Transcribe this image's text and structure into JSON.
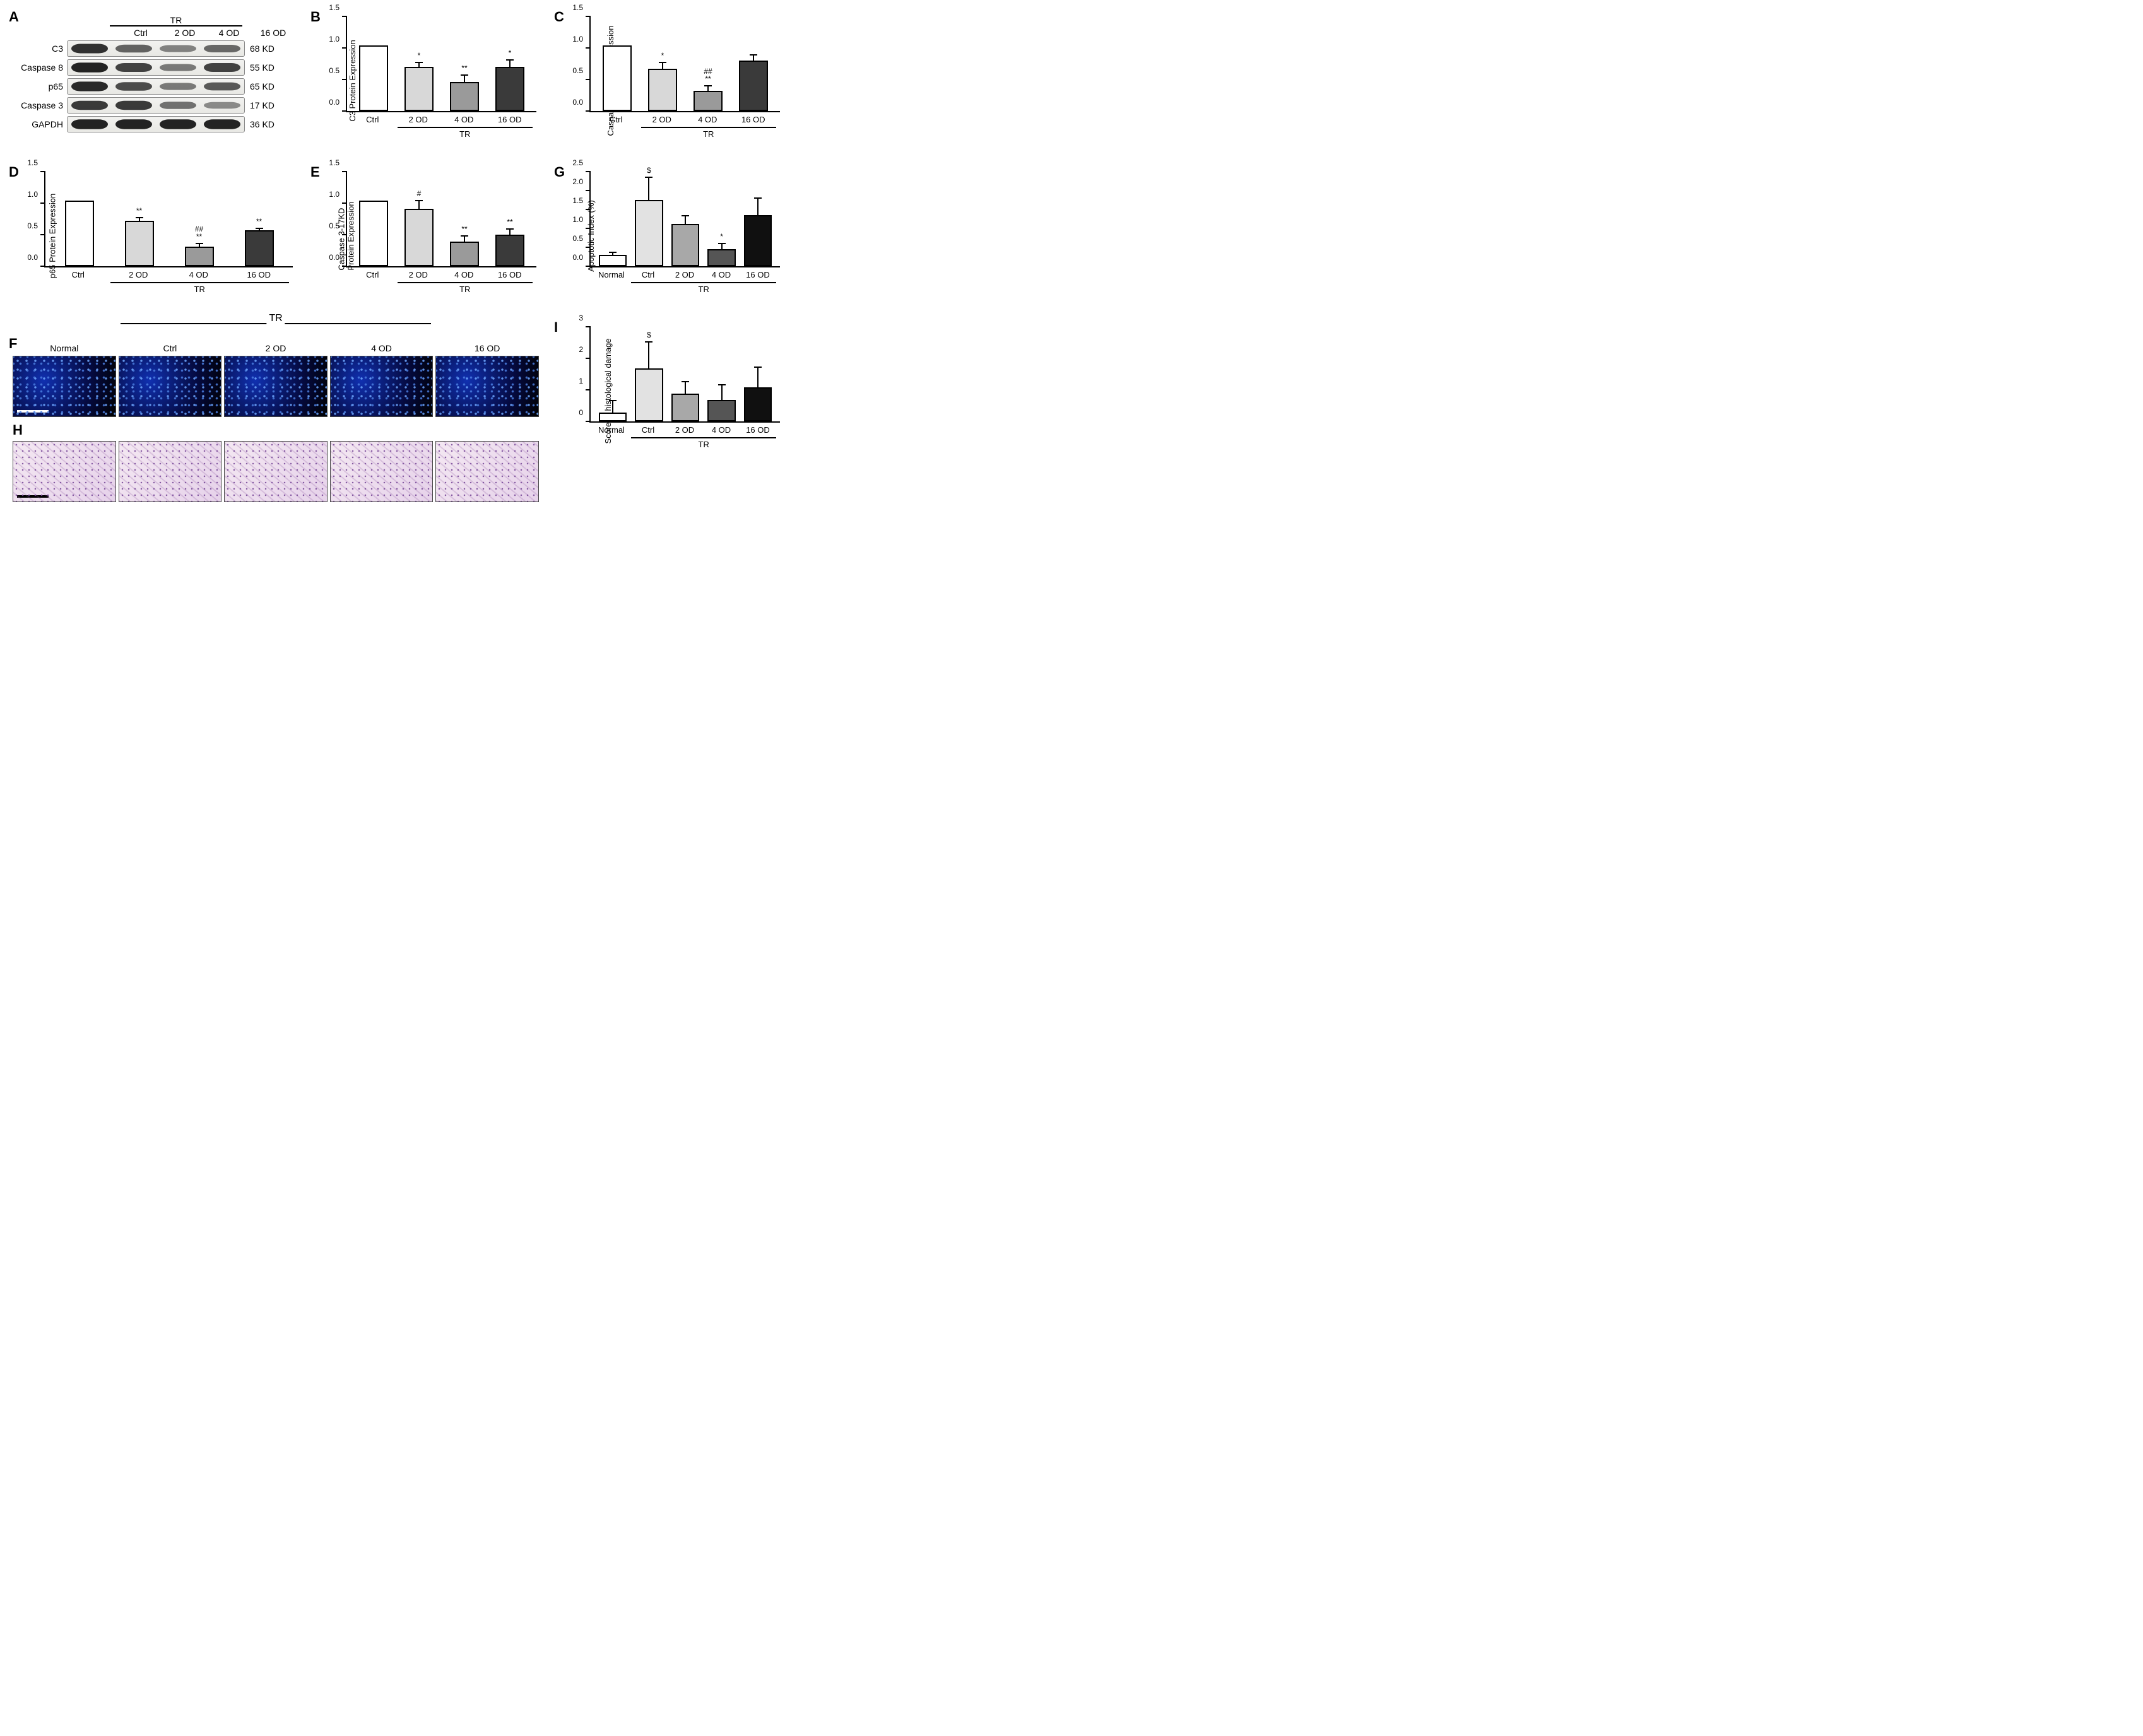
{
  "treatments4": [
    "Ctrl",
    "2 OD",
    "4 OD",
    "16 OD"
  ],
  "treatments5": [
    "Normal",
    "Ctrl",
    "2 OD",
    "4 OD",
    "16 OD"
  ],
  "tr_label": "TR",
  "panelA": {
    "label": "A",
    "rows": [
      {
        "name": "C3",
        "kd": "68 KD",
        "intensity": [
          0.85,
          0.55,
          0.35,
          0.5
        ]
      },
      {
        "name": "Caspase 8",
        "kd": "55 KD",
        "intensity": [
          0.95,
          0.75,
          0.4,
          0.75
        ]
      },
      {
        "name": "p65",
        "kd": "65 KD",
        "intensity": [
          0.9,
          0.7,
          0.4,
          0.6
        ]
      },
      {
        "name": "Caspase 3",
        "kd": "17 KD",
        "intensity": [
          0.8,
          0.8,
          0.45,
          0.3
        ]
      },
      {
        "name": "GAPDH",
        "kd": "36 KD",
        "intensity": [
          0.95,
          0.95,
          0.95,
          0.95
        ]
      }
    ]
  },
  "chartsCommon": {
    "bar_border": "#000000",
    "colors4": [
      "#ffffff",
      "#d8d8d8",
      "#9a9a9a",
      "#3a3a3a"
    ],
    "colors5": [
      "#ffffff",
      "#e2e2e2",
      "#a8a8a8",
      "#555555",
      "#101010"
    ],
    "tick_font": 12,
    "label_font": 13
  },
  "panelB": {
    "label": "B",
    "ylabel": "C3 Protein Expression",
    "ylim": [
      0,
      1.5
    ],
    "ytick_step": 0.5,
    "groups": 4,
    "values": [
      1.0,
      0.66,
      0.42,
      0.66
    ],
    "errors": [
      0.0,
      0.1,
      0.14,
      0.14
    ],
    "sig": [
      "",
      "*",
      "**",
      "*"
    ]
  },
  "panelC": {
    "label": "C",
    "ylabel": "Caspase 8 Protein Expression",
    "ylim": [
      0,
      1.5
    ],
    "ytick_step": 0.5,
    "groups": 4,
    "values": [
      1.0,
      0.63,
      0.28,
      0.76
    ],
    "errors": [
      0.0,
      0.13,
      0.11,
      0.12
    ],
    "sig": [
      "",
      "*",
      "##\n**",
      ""
    ]
  },
  "panelD": {
    "label": "D",
    "ylabel": "p65 Protein Expression",
    "ylim": [
      0,
      1.5
    ],
    "ytick_step": 0.5,
    "groups": 4,
    "values": [
      1.0,
      0.68,
      0.27,
      0.53
    ],
    "errors": [
      0.0,
      0.08,
      0.08,
      0.06
    ],
    "sig": [
      "",
      "**",
      "##\n**",
      "**"
    ]
  },
  "panelE": {
    "label": "E",
    "ylabel": "Caspase 3-17KD\nProtein Expression",
    "ylim": [
      0,
      1.5
    ],
    "ytick_step": 0.5,
    "groups": 4,
    "values": [
      1.0,
      0.87,
      0.35,
      0.46
    ],
    "errors": [
      0.0,
      0.16,
      0.12,
      0.12
    ],
    "sig": [
      "",
      "#",
      "**",
      "**"
    ]
  },
  "panelG": {
    "label": "G",
    "ylabel": "Apoptotic Index (%)",
    "ylim": [
      0,
      2.5
    ],
    "ytick_step": 0.5,
    "groups": 5,
    "values": [
      0.23,
      1.68,
      1.05,
      0.38,
      1.28
    ],
    "errors": [
      0.12,
      0.65,
      0.27,
      0.2,
      0.5
    ],
    "sig": [
      "",
      "$",
      "",
      "*",
      ""
    ]
  },
  "panelI": {
    "label": "I",
    "ylabel": "Score of histological damage",
    "ylim": [
      0,
      3
    ],
    "ytick_step": 1,
    "groups": 5,
    "values": [
      0.2,
      1.6,
      0.8,
      0.6,
      1.0
    ],
    "errors": [
      0.45,
      0.9,
      0.45,
      0.55,
      0.7
    ],
    "sig": [
      "",
      "$",
      "",
      "",
      ""
    ]
  },
  "panelF": {
    "label": "F",
    "type": "fluorescence",
    "scalebar_first_only": true
  },
  "panelH": {
    "label": "H",
    "type": "histology",
    "scalebar_first_only": true
  }
}
